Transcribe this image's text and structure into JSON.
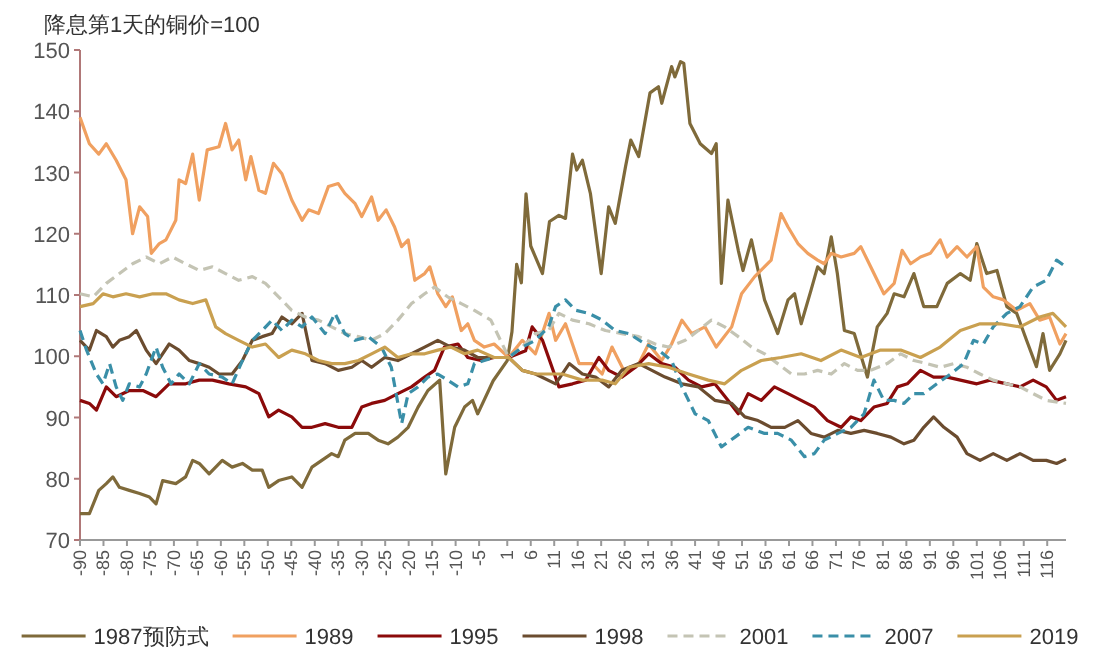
{
  "chart_data": {
    "type": "line",
    "title": "降息第1天的铜价=100",
    "legend": "bottom",
    "xlim": [
      -90,
      120
    ],
    "xticks": [
      -90,
      -85,
      -80,
      -75,
      -70,
      -65,
      -60,
      -55,
      -50,
      -45,
      -40,
      -35,
      -30,
      -25,
      -20,
      -15,
      -10,
      -5,
      1,
      6,
      11,
      16,
      21,
      26,
      31,
      36,
      41,
      46,
      51,
      56,
      61,
      66,
      71,
      76,
      81,
      86,
      91,
      96,
      101,
      106,
      111,
      116
    ],
    "ylim": [
      70,
      150
    ],
    "yticks": [
      70,
      80,
      90,
      100,
      110,
      120,
      130,
      140,
      150
    ],
    "series": [
      {
        "name": "1987预防式",
        "color": "#7f6a3a",
        "line_style": "solid",
        "x": [
          -90,
          -88,
          -86,
          -84.4,
          -83,
          -81.6,
          -79.5,
          -77.3,
          -75.2,
          -73.8,
          -72.4,
          -69.6,
          -67.5,
          -66,
          -64.6,
          -62.5,
          -59.7,
          -57.6,
          -55.4,
          -53.3,
          -51.2,
          -49.8,
          -47.7,
          -44.9,
          -42.7,
          -40.6,
          -38.5,
          -36.4,
          -35,
          -33.6,
          -31.4,
          -28.6,
          -26.5,
          -24.4,
          -22.3,
          -20.1,
          -18,
          -15.9,
          -13.4,
          -12.1,
          -10.2,
          -8.1,
          -6.4,
          -5.3,
          -2,
          1,
          2,
          3,
          4,
          5,
          6,
          8.5,
          10,
          12,
          13.4,
          14.9,
          15.8,
          17,
          18.7,
          21,
          22.6,
          24,
          26.2,
          27.3,
          29,
          31.4,
          33.2,
          33.9,
          36,
          36.7,
          37.9,
          38.6,
          39.9,
          42.1,
          44.5,
          45.5,
          46.6,
          48,
          50.2,
          51.2,
          53,
          55.8,
          58.6,
          60.8,
          62.2,
          63.6,
          65.7,
          67.1,
          68.5,
          70,
          71.3,
          72.8,
          74.9,
          77.7,
          79.8,
          81.9,
          83.4,
          85.5,
          87.6,
          89.7,
          92.5,
          94.7,
          97.5,
          99.6,
          101,
          103.1,
          105.3,
          107.4,
          109.5,
          111.6,
          113.7,
          115.1,
          116.5,
          118.7,
          120
        ],
        "values": [
          74.3,
          74.3,
          78.1,
          79.2,
          80.3,
          78.6,
          78.1,
          77.6,
          77,
          75.9,
          79.7,
          79.2,
          80.3,
          83,
          82.5,
          80.8,
          83,
          81.9,
          82.5,
          81.4,
          81.4,
          78.6,
          79.7,
          80.3,
          78.6,
          81.9,
          83,
          84.1,
          83.6,
          86.3,
          87.4,
          87.4,
          86.3,
          85.7,
          86.8,
          88.4,
          91.7,
          94.4,
          96.1,
          80.8,
          88.4,
          91.7,
          92.8,
          90.6,
          96,
          99.3,
          104,
          115,
          112,
          126.5,
          118,
          113.5,
          122,
          123,
          122.5,
          133,
          130.4,
          132,
          126.6,
          113.5,
          124.4,
          121.7,
          131,
          135.3,
          132.6,
          143,
          144,
          141.3,
          147.3,
          145.6,
          148.1,
          147.8,
          138,
          134.7,
          133.1,
          134.7,
          111.9,
          125.5,
          117.3,
          114,
          119,
          109.2,
          103.7,
          109.2,
          110.2,
          105.3,
          110.8,
          114.6,
          113.5,
          119.5,
          113.5,
          104.2,
          103.7,
          96.6,
          104.8,
          107,
          110.2,
          109.7,
          113.5,
          108.1,
          108.1,
          111.9,
          113.5,
          112.4,
          118.4,
          113.5,
          114,
          108.1,
          107,
          102.6,
          98.3,
          103.7,
          97.7,
          100.4,
          102.6
        ]
      },
      {
        "name": "1989",
        "color": "#f0a060",
        "line_style": "solid",
        "x": [
          -90,
          -88,
          -86,
          -84.4,
          -82.3,
          -80.2,
          -78.8,
          -77.3,
          -75.6,
          -74.8,
          -73.1,
          -71.7,
          -69.6,
          -68.9,
          -67.5,
          -66,
          -64.6,
          -62.9,
          -60.4,
          -59,
          -57.6,
          -56.2,
          -54.7,
          -53.6,
          -51.9,
          -50.5,
          -48.8,
          -47,
          -44.9,
          -42.7,
          -41.3,
          -39.2,
          -37.1,
          -35,
          -33.6,
          -31.4,
          -30,
          -27.9,
          -26.5,
          -24.8,
          -23,
          -21.5,
          -20.1,
          -18.7,
          -16.6,
          -15.5,
          -13.8,
          -12.1,
          -10.7,
          -8.8,
          -7.4,
          -6,
          -3.9,
          -1.8,
          1.3,
          4.2,
          7,
          9.9,
          11.3,
          13.4,
          16.3,
          19.1,
          21.2,
          23.3,
          26.2,
          29,
          31.1,
          33.9,
          36,
          38.2,
          40.3,
          43.1,
          45.5,
          48.8,
          50.9,
          53.7,
          57.2,
          59.3,
          60.8,
          62.9,
          65,
          67.1,
          68.5,
          70,
          72.1,
          74.9,
          76.3,
          78.4,
          81.2,
          83.4,
          85.1,
          86.9,
          89,
          91.1,
          93.2,
          94.7,
          96.8,
          98.9,
          101,
          102.4,
          104.5,
          106.7,
          109.5,
          112.3,
          114.4,
          116.5,
          118.7,
          120
        ],
        "values": [
          139,
          134.7,
          133,
          134.7,
          132,
          128.8,
          120,
          124.4,
          122.8,
          116.8,
          118.4,
          119,
          122.2,
          128.8,
          128.2,
          133,
          125.5,
          133.7,
          134.2,
          138,
          133.7,
          135.3,
          128.8,
          132.6,
          127.1,
          126.6,
          131.5,
          129.8,
          125.5,
          122.2,
          123.9,
          123.3,
          127.7,
          128.2,
          126.6,
          124.9,
          122.8,
          126,
          122.2,
          123.9,
          121.1,
          117.9,
          119,
          112.4,
          113.5,
          114.6,
          110.2,
          108.1,
          109.7,
          104.2,
          105.3,
          102.6,
          101.5,
          102,
          99.8,
          102.6,
          100.4,
          107,
          102.6,
          105.3,
          98.8,
          98.8,
          97.1,
          101.5,
          97.1,
          98.8,
          102,
          99.3,
          102,
          105.9,
          103.7,
          104.8,
          101.5,
          104.8,
          110.2,
          113,
          115.7,
          123.3,
          121.1,
          118.4,
          116.8,
          115.7,
          115.1,
          116.8,
          116.2,
          116.8,
          117.9,
          114.6,
          110.2,
          111.9,
          117.3,
          115.1,
          116.2,
          116.8,
          119,
          116.2,
          117.9,
          116.2,
          117.9,
          111.3,
          109.7,
          109.2,
          107.5,
          108.6,
          105.9,
          106.4,
          102,
          103.7
        ]
      },
      {
        "name": "1995",
        "color": "#8b0a0a",
        "line_style": "solid",
        "x": [
          -90,
          -88,
          -86.5,
          -84.4,
          -82.3,
          -79.5,
          -76.6,
          -73.8,
          -71,
          -67.5,
          -64.6,
          -61.8,
          -58.3,
          -54.7,
          -51.9,
          -49.8,
          -47.7,
          -44.9,
          -42.7,
          -40.6,
          -37.8,
          -35,
          -32.1,
          -30,
          -27.9,
          -25.1,
          -22.3,
          -19.4,
          -16.6,
          -14.5,
          -12.4,
          -9.5,
          -7.4,
          -4.6,
          -1.8,
          1.3,
          4.9,
          6.3,
          8.5,
          12,
          14.9,
          17.7,
          20.5,
          22.6,
          25.4,
          28.3,
          31.1,
          33.9,
          36.7,
          39.6,
          42.4,
          45.2,
          48,
          50.2,
          52.3,
          55.1,
          57.9,
          60.8,
          63.6,
          66.4,
          69.2,
          72.1,
          74.2,
          76.3,
          79.1,
          81.9,
          84.1,
          86.2,
          89,
          91.8,
          94.7,
          97.5,
          101,
          103.8,
          107.4,
          110.2,
          113,
          115.8,
          118,
          120
        ],
        "values": [
          92.8,
          92.3,
          91.2,
          95,
          93.4,
          94.4,
          94.4,
          93.4,
          95.5,
          95.5,
          96.1,
          96.1,
          95.5,
          95,
          93.9,
          90.1,
          91.2,
          90.1,
          88.4,
          88.4,
          89,
          88.4,
          88.4,
          91.7,
          92.3,
          92.8,
          93.9,
          95,
          96.6,
          97.7,
          101.5,
          102,
          99.8,
          99.3,
          99.8,
          99.8,
          100.9,
          104.8,
          102.6,
          95,
          95.5,
          96.1,
          99.8,
          97.7,
          96.6,
          98.2,
          100.4,
          98.8,
          98.2,
          96.1,
          95,
          95.5,
          92.8,
          90.6,
          93.9,
          92.8,
          95,
          93.9,
          92.8,
          91.7,
          89.5,
          88.4,
          90.1,
          89.5,
          91.7,
          92.3,
          95,
          95.5,
          97.7,
          96.6,
          96.6,
          96.1,
          95.5,
          96.1,
          95.5,
          95,
          96.1,
          95,
          92.8,
          93.4
        ]
      },
      {
        "name": "1998",
        "color": "#6b4c2f",
        "line_style": "solid",
        "x": [
          -90,
          -88,
          -86.5,
          -84.4,
          -83,
          -81.6,
          -79.5,
          -78,
          -75.9,
          -73.8,
          -71,
          -68.9,
          -66.7,
          -64.6,
          -62.5,
          -60.4,
          -57.6,
          -55.4,
          -53.3,
          -51.2,
          -49.1,
          -47,
          -44.9,
          -42.7,
          -40.6,
          -37.8,
          -35,
          -32.1,
          -30,
          -27.9,
          -25.1,
          -22.3,
          -19.4,
          -16.6,
          -13.8,
          -11,
          -8.1,
          -5.3,
          -1.8,
          1.3,
          4.2,
          7,
          11.3,
          14.2,
          17,
          19.8,
          22.6,
          25.4,
          29,
          31.8,
          34.6,
          38.2,
          41.7,
          45.2,
          48.8,
          51.6,
          54.4,
          57.2,
          60.1,
          62.9,
          65.7,
          68.5,
          71.4,
          74.2,
          77,
          79.8,
          82.7,
          85.5,
          87.6,
          89.7,
          91.8,
          94,
          96.8,
          98.9,
          101.7,
          104.5,
          107.4,
          110.2,
          113,
          115.8,
          118,
          120
        ],
        "values": [
          102.6,
          101,
          104.2,
          103.2,
          101.5,
          102.6,
          103.2,
          104.2,
          101,
          98.8,
          102,
          101,
          99.3,
          98.8,
          98.2,
          97.1,
          97.1,
          99.3,
          102.6,
          103.2,
          103.7,
          106.4,
          105.3,
          107,
          99.3,
          98.8,
          97.7,
          98.2,
          99.3,
          98.2,
          99.8,
          99.3,
          100.4,
          101.5,
          102.6,
          101.5,
          101,
          99.8,
          99.8,
          99.8,
          97.7,
          97.1,
          95.5,
          98.8,
          97.1,
          96.6,
          95,
          97.7,
          98.8,
          97.7,
          96.6,
          95.5,
          95,
          92.8,
          92.3,
          90.1,
          89.5,
          88.4,
          88.4,
          89.5,
          87.4,
          86.8,
          87.9,
          87.4,
          87.9,
          87.4,
          86.8,
          85.7,
          86.3,
          88.4,
          90.1,
          88.4,
          86.8,
          84.1,
          83,
          84.1,
          83,
          84.1,
          83,
          83,
          82.5,
          83.2
        ]
      },
      {
        "name": "2001",
        "color": "#c4c4b4",
        "line_style": "dashed",
        "x": [
          -90,
          -87.2,
          -84.4,
          -81.6,
          -78.8,
          -75.9,
          -73.1,
          -70.3,
          -67.5,
          -64.6,
          -61.8,
          -59,
          -56.2,
          -53.3,
          -50.5,
          -47.7,
          -44.9,
          -42,
          -39.2,
          -36.4,
          -33.6,
          -30.7,
          -27.9,
          -25.1,
          -22.3,
          -19.4,
          -16.6,
          -14.5,
          -11.7,
          -8.8,
          -6,
          -2.5,
          1.3,
          4.2,
          7,
          9.8,
          12,
          14.9,
          18.4,
          21.9,
          25.4,
          29,
          32.5,
          35.3,
          38.9,
          41.7,
          44.5,
          47.3,
          50.2,
          53,
          55.8,
          58.6,
          61.5,
          64.3,
          67.1,
          70,
          72.8,
          75.6,
          78.4,
          81.9,
          84.8,
          87.6,
          90.4,
          93.2,
          96.1,
          98.9,
          101.7,
          104.5,
          107.4,
          110.2,
          113,
          115.8,
          120
        ],
        "values": [
          110.2,
          109.7,
          111.9,
          113.5,
          115.1,
          116.2,
          115.1,
          116.2,
          115.1,
          114,
          114.6,
          113.5,
          112.4,
          113,
          111.9,
          109.7,
          107.5,
          106.4,
          105.9,
          104.8,
          103.7,
          103.2,
          102.6,
          103.7,
          105.9,
          108.6,
          110.2,
          111.3,
          109.7,
          108.6,
          107.5,
          105.9,
          99.8,
          101.5,
          103.7,
          104.2,
          107,
          105.9,
          105.3,
          104.2,
          103.7,
          103.2,
          102,
          101.5,
          102.6,
          104.2,
          105.9,
          104.8,
          103.2,
          101.5,
          100.4,
          98.8,
          97.1,
          97.1,
          97.7,
          97.1,
          98.8,
          97.7,
          97.7,
          98.8,
          100.4,
          99.3,
          98.8,
          98.2,
          98.8,
          98.2,
          97.1,
          96.1,
          95.5,
          95,
          93.9,
          92.8,
          92.3
        ]
      },
      {
        "name": "2007",
        "color": "#3a8fa8",
        "line_style": "dashed",
        "x": [
          -90,
          -88.6,
          -86.5,
          -85.1,
          -83.7,
          -82.3,
          -80.9,
          -79.5,
          -77.3,
          -75.9,
          -73.8,
          -72.4,
          -70.6,
          -68.9,
          -66.7,
          -64.6,
          -62.5,
          -59.7,
          -57.6,
          -55.4,
          -53.3,
          -51.2,
          -49.1,
          -47,
          -44.9,
          -42.7,
          -40.6,
          -37.8,
          -35.7,
          -33.6,
          -31.4,
          -28.6,
          -25.8,
          -23.7,
          -21.5,
          -20.1,
          -18,
          -15.9,
          -13.8,
          -11.7,
          -9.5,
          -7.4,
          -6,
          -3.9,
          -1.8,
          1.3,
          4.2,
          7,
          9.8,
          11.3,
          13.4,
          15.6,
          18.4,
          21.2,
          24,
          26.9,
          30.4,
          33.2,
          36,
          38.2,
          41,
          43.8,
          46.6,
          49.5,
          52.3,
          55.8,
          58.6,
          61.5,
          64.3,
          66.4,
          68.5,
          71.4,
          74.2,
          77,
          79.1,
          81.2,
          83.4,
          85.5,
          87.6,
          89.7,
          92.5,
          95.4,
          98.2,
          100.3,
          102.4,
          104.5,
          107.4,
          110.2,
          113,
          115.8,
          118,
          120
        ],
        "values": [
          104.2,
          101,
          97.1,
          95.5,
          98.8,
          95,
          92.8,
          95.5,
          95,
          97.1,
          101.5,
          98.2,
          95.5,
          97.1,
          95.5,
          98.8,
          97.1,
          96.6,
          95.5,
          99.3,
          102.6,
          104.2,
          105.9,
          104.2,
          105.9,
          104.8,
          106.4,
          103.7,
          107,
          103.7,
          102.6,
          103.2,
          101.5,
          98.2,
          89,
          93.9,
          95,
          96.6,
          97.1,
          96.1,
          95,
          95.5,
          98.8,
          99.3,
          99.8,
          99.8,
          101.5,
          102.6,
          104.8,
          108.1,
          109.2,
          107.5,
          107,
          105.9,
          104.2,
          103.7,
          102,
          101,
          99.3,
          95,
          90.6,
          89.5,
          85.2,
          86.8,
          88.4,
          87.4,
          87.4,
          86.3,
          83.6,
          84.1,
          86.3,
          87.4,
          88.4,
          90.6,
          96.1,
          92.8,
          92.8,
          92.3,
          93.9,
          93.9,
          95.5,
          97.1,
          98.8,
          102.6,
          102,
          104.8,
          107,
          108.1,
          111.3,
          112.4,
          115.7,
          114.6
        ]
      },
      {
        "name": "2019",
        "color": "#c9a050",
        "line_style": "solid",
        "x": [
          -90,
          -87.2,
          -85.1,
          -83,
          -80.2,
          -77.3,
          -74.5,
          -71.7,
          -68.9,
          -66,
          -63.2,
          -61.1,
          -59,
          -56.2,
          -53.3,
          -50.5,
          -47.7,
          -44.9,
          -42,
          -39.2,
          -36.4,
          -33.6,
          -30.7,
          -27.9,
          -25.1,
          -22.3,
          -19.4,
          -16.6,
          -13.8,
          -11,
          -8.1,
          -5.3,
          -1.8,
          1.3,
          4.2,
          7,
          12.7,
          17,
          21.2,
          24,
          26.9,
          31.1,
          35.3,
          39.6,
          43.8,
          47.3,
          50.9,
          55.1,
          59.3,
          63.6,
          67.8,
          72.1,
          76.3,
          80.5,
          84.8,
          89,
          93.2,
          97.5,
          101.7,
          106,
          110.2,
          114.4,
          117.2,
          120
        ],
        "values": [
          108.1,
          108.6,
          110.2,
          109.7,
          110.2,
          109.7,
          110.2,
          110.2,
          109.2,
          108.6,
          109.2,
          104.8,
          103.7,
          102.6,
          101.5,
          102,
          99.8,
          101,
          100.4,
          99.3,
          98.8,
          98.8,
          99.3,
          100.4,
          101.5,
          99.8,
          100.4,
          100.4,
          101,
          101.5,
          100.4,
          101,
          99.8,
          99.8,
          97.7,
          97.1,
          97.1,
          96.1,
          96.1,
          95.5,
          98.2,
          98.8,
          98.2,
          97.1,
          96.1,
          95.5,
          97.7,
          99.3,
          99.8,
          100.4,
          99.3,
          101,
          99.8,
          101,
          101,
          99.8,
          101.5,
          104.2,
          105.3,
          105.3,
          104.8,
          106.4,
          107,
          104.8
        ]
      }
    ]
  }
}
